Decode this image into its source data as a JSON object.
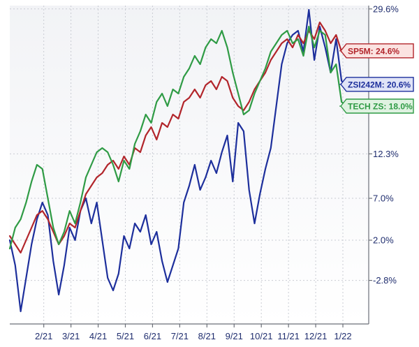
{
  "chart_data": {
    "type": "line",
    "title": "",
    "xlabel": "",
    "ylabel": "",
    "y_axis_side": "right",
    "ylim": [
      -8,
      30
    ],
    "y_ticks": [
      29.6,
      12.3,
      7.0,
      2.0,
      -2.8
    ],
    "y_tick_labels": [
      "29.6%",
      "12.3%",
      "7.0%",
      "2.0%",
      "-2.8%"
    ],
    "x_tick_labels": [
      "2/21",
      "3/21",
      "4/21",
      "5/21",
      "6/21",
      "7/21",
      "8/21",
      "9/21",
      "10/21",
      "11/21",
      "12/21",
      "1/22"
    ],
    "x_tick_positions": [
      1.75,
      2.75,
      3.75,
      4.75,
      5.75,
      6.75,
      7.75,
      8.75,
      9.75,
      10.75,
      11.75,
      12.75
    ],
    "xlim": [
      0.5,
      13.7
    ],
    "grid": true,
    "series": [
      {
        "name": "ZSI242M",
        "color": "#1d2f9c",
        "x": [
          0.5,
          0.7,
          0.9,
          1.1,
          1.3,
          1.5,
          1.7,
          1.9,
          2.1,
          2.3,
          2.5,
          2.7,
          2.9,
          3.1,
          3.3,
          3.5,
          3.7,
          3.9,
          4.1,
          4.3,
          4.5,
          4.7,
          4.9,
          5.1,
          5.3,
          5.5,
          5.7,
          5.9,
          6.1,
          6.3,
          6.5,
          6.7,
          6.9,
          7.1,
          7.3,
          7.5,
          7.7,
          7.9,
          8.1,
          8.3,
          8.5,
          8.7,
          8.9,
          9.1,
          9.3,
          9.5,
          9.7,
          9.9,
          10.1,
          10.3,
          10.5,
          10.7,
          10.9,
          11.1,
          11.3,
          11.5,
          11.7,
          11.9,
          12.1,
          12.3,
          12.5,
          12.7,
          12.9,
          13.1
        ],
        "values": [
          2.0,
          -1.0,
          -6.5,
          -2.5,
          1.5,
          4.5,
          6.5,
          5.0,
          -0.5,
          -4.5,
          -1.0,
          3.5,
          2.0,
          5.5,
          7.0,
          4.0,
          6.5,
          2.0,
          -2.5,
          -4.0,
          -2.0,
          2.5,
          1.0,
          4.0,
          3.0,
          5.0,
          1.5,
          3.0,
          -0.5,
          -3.0,
          -1.0,
          1.0,
          6.5,
          8.5,
          11.0,
          8.0,
          9.5,
          11.5,
          10.0,
          12.5,
          14.5,
          9.0,
          16.0,
          15.0,
          8.0,
          4.0,
          7.5,
          10.5,
          13.0,
          18.0,
          23.0,
          25.5,
          26.5,
          27.0,
          24.5,
          29.5,
          23.5,
          27.5,
          25.0,
          22.0,
          26.0,
          21.0,
          20.6,
          20.6
        ]
      },
      {
        "name": "SP5M",
        "color": "#b2252b",
        "x": [
          0.5,
          0.7,
          0.9,
          1.1,
          1.3,
          1.5,
          1.7,
          1.9,
          2.1,
          2.3,
          2.5,
          2.7,
          2.9,
          3.1,
          3.3,
          3.5,
          3.7,
          3.9,
          4.1,
          4.3,
          4.5,
          4.7,
          4.9,
          5.1,
          5.3,
          5.5,
          5.7,
          5.9,
          6.1,
          6.3,
          6.5,
          6.7,
          6.9,
          7.1,
          7.3,
          7.5,
          7.7,
          7.9,
          8.1,
          8.3,
          8.5,
          8.7,
          8.9,
          9.1,
          9.3,
          9.5,
          9.7,
          9.9,
          10.1,
          10.3,
          10.5,
          10.7,
          10.9,
          11.1,
          11.3,
          11.5,
          11.7,
          11.9,
          12.1,
          12.3,
          12.5,
          12.7,
          12.9,
          13.1
        ],
        "values": [
          2.5,
          1.5,
          0.5,
          2.0,
          3.5,
          5.0,
          5.5,
          4.5,
          3.0,
          1.5,
          2.5,
          4.0,
          3.5,
          5.5,
          7.5,
          8.5,
          9.5,
          10.0,
          11.0,
          11.5,
          10.5,
          12.0,
          11.0,
          13.0,
          12.5,
          14.5,
          15.5,
          14.0,
          16.0,
          15.5,
          17.0,
          16.5,
          18.5,
          19.0,
          20.0,
          19.0,
          20.5,
          21.0,
          20.0,
          21.5,
          21.0,
          19.0,
          18.0,
          17.5,
          18.5,
          20.0,
          21.0,
          22.0,
          23.5,
          24.5,
          25.5,
          26.0,
          25.0,
          26.5,
          25.5,
          27.0,
          26.0,
          28.0,
          27.0,
          25.5,
          26.5,
          24.5,
          24.6,
          24.6
        ]
      },
      {
        "name": "TECH ZS",
        "color": "#2f9b45",
        "x": [
          0.5,
          0.7,
          0.9,
          1.1,
          1.3,
          1.5,
          1.7,
          1.9,
          2.1,
          2.3,
          2.5,
          2.7,
          2.9,
          3.1,
          3.3,
          3.5,
          3.7,
          3.9,
          4.1,
          4.3,
          4.5,
          4.7,
          4.9,
          5.1,
          5.3,
          5.5,
          5.7,
          5.9,
          6.1,
          6.3,
          6.5,
          6.7,
          6.9,
          7.1,
          7.3,
          7.5,
          7.7,
          7.9,
          8.1,
          8.3,
          8.5,
          8.7,
          8.9,
          9.1,
          9.3,
          9.5,
          9.7,
          9.9,
          10.1,
          10.3,
          10.5,
          10.7,
          10.9,
          11.1,
          11.3,
          11.5,
          11.7,
          11.9,
          12.1,
          12.3,
          12.5,
          12.7,
          12.9,
          13.1
        ],
        "values": [
          1.0,
          3.5,
          4.5,
          6.5,
          9.0,
          11.0,
          10.5,
          7.0,
          3.5,
          1.5,
          3.0,
          5.5,
          4.0,
          6.5,
          9.5,
          11.0,
          12.5,
          13.0,
          12.5,
          11.0,
          9.0,
          11.5,
          10.5,
          13.5,
          15.0,
          17.0,
          16.0,
          18.5,
          19.5,
          18.0,
          20.0,
          19.5,
          21.5,
          22.5,
          24.0,
          23.0,
          25.0,
          26.0,
          25.5,
          27.0,
          25.0,
          22.0,
          19.5,
          17.0,
          17.5,
          19.5,
          21.0,
          22.5,
          24.5,
          25.5,
          26.5,
          27.0,
          25.5,
          26.0,
          24.0,
          27.5,
          25.0,
          27.0,
          26.5,
          22.0,
          23.0,
          18.5,
          18.0,
          18.0
        ]
      }
    ],
    "end_tags": [
      {
        "label": "SP5M: 24.6%",
        "value": 24.6,
        "color": "#b2252b",
        "fill": "#fbe3e1"
      },
      {
        "label": "ZSI242M: 20.6%",
        "value": 20.6,
        "color": "#1d2f9c",
        "fill": "#e0e4f7"
      },
      {
        "label": "TECH ZS: 18.0%",
        "value": 18.0,
        "color": "#2f9b45",
        "fill": "#dff2e1"
      }
    ]
  }
}
